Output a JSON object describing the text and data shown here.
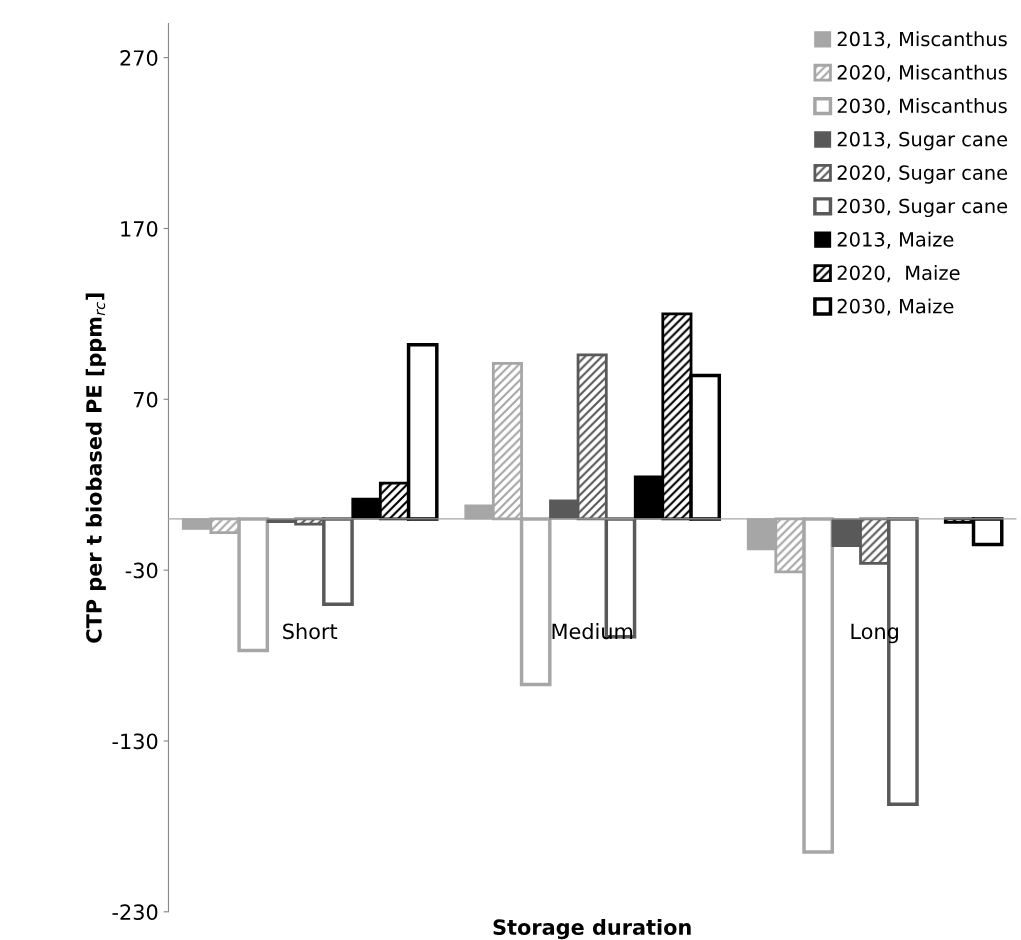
{
  "chart_data": {
    "type": "bar",
    "xlabel": "Storage duration",
    "ylabel": "CTP per t biobased PE [ppm$_{rc}$]",
    "categories": [
      "Short",
      "Medium",
      "Long"
    ],
    "ylim": [
      -230,
      290
    ],
    "yticks": [
      -230,
      -130,
      -30,
      70,
      170,
      270
    ],
    "grid": false,
    "legend": "top right",
    "series": [
      {
        "name": "2013, Miscanthus",
        "color": "#a6a6a6",
        "values": [
          -6,
          8,
          -18
        ]
      },
      {
        "name": "2020, Miscanthus",
        "color": "#a6a6a6",
        "values": [
          -8,
          91,
          -31
        ]
      },
      {
        "name": "2030, Miscanthus",
        "color": "#a6a6a6",
        "values": [
          -77,
          -97,
          -195
        ]
      },
      {
        "name": "2013, Sugar cane",
        "color": "#595959",
        "values": [
          -2,
          11,
          -16
        ]
      },
      {
        "name": "2020, Sugar cane",
        "color": "#595959",
        "values": [
          -3,
          96,
          -26
        ]
      },
      {
        "name": "2030, Sugar cane",
        "color": "#595959",
        "values": [
          -50,
          -69,
          -167
        ]
      },
      {
        "name": "2013, Maize",
        "color": "#000000",
        "values": [
          12,
          25,
          null
        ]
      },
      {
        "name": "2020,  Maize",
        "color": "#000000",
        "values": [
          21,
          120,
          -2
        ]
      },
      {
        "name": "2030, Maize",
        "color": "#000000",
        "values": [
          102,
          84,
          -15
        ]
      }
    ]
  }
}
